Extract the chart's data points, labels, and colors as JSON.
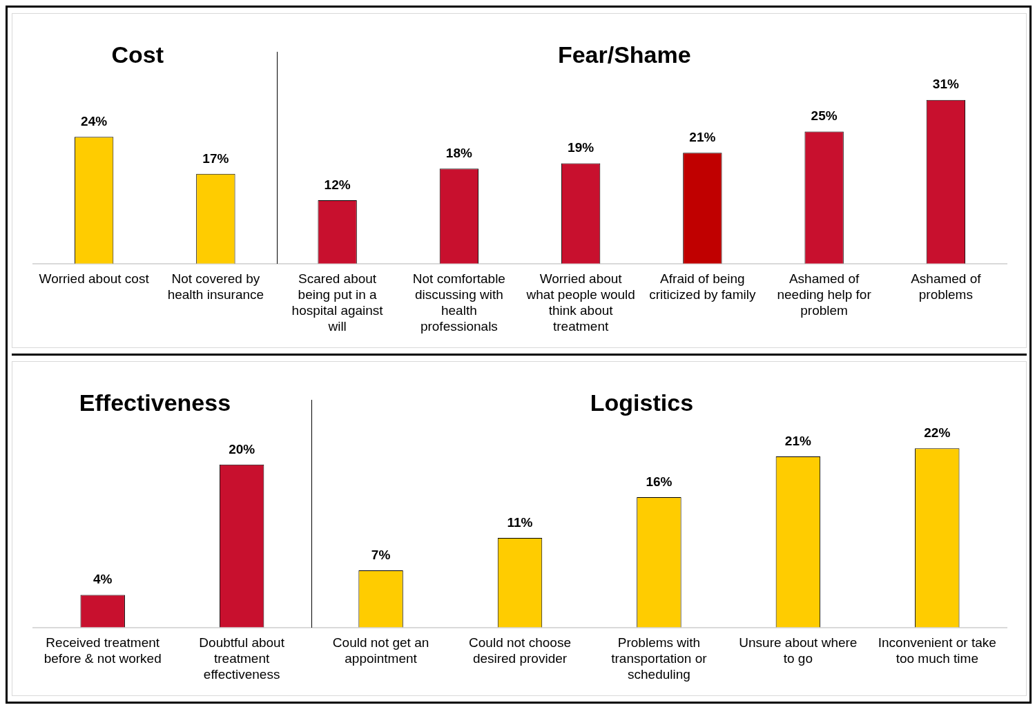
{
  "chart_data": [
    {
      "type": "bar",
      "categories": [
        "Worried about cost",
        "Not covered by health insurance",
        "Scared about being put in a hospital against will",
        "Not comfortable discussing with health professionals",
        "Worried about what people would think about treatment",
        "Afraid of being criticized by family",
        "Ashamed of needing help for problem",
        "Ashamed of problems"
      ],
      "values": [
        24,
        17,
        12,
        18,
        19,
        21,
        25,
        31
      ],
      "colors": [
        "#ffcc00",
        "#ffcc00",
        "#c8102e",
        "#c8102e",
        "#c8102e",
        "#c00000",
        "#c8102e",
        "#c8102e"
      ],
      "value_labels": [
        "24%",
        "17%",
        "12%",
        "18%",
        "19%",
        "21%",
        "25%",
        "31%"
      ],
      "annotations": [
        "Cost",
        "Fear/Shame"
      ]
    },
    {
      "type": "bar",
      "categories": [
        "Received treatment before & not worked",
        "Doubtful about treatment effectiveness",
        "Could not get an appointment",
        "Could not choose desired provider",
        "Problems with transportation or scheduling",
        "Unsure about where to go",
        "Inconvenient or take too much time"
      ],
      "values": [
        4,
        20,
        7,
        11,
        16,
        21,
        22
      ],
      "colors": [
        "#c8102e",
        "#c8102e",
        "#ffcc00",
        "#ffcc00",
        "#ffcc00",
        "#ffcc00",
        "#ffcc00"
      ],
      "value_labels": [
        "4%",
        "20%",
        "7%",
        "11%",
        "16%",
        "21%",
        "22%"
      ],
      "annotations": [
        "Effectiveness",
        "Logistics"
      ]
    }
  ]
}
